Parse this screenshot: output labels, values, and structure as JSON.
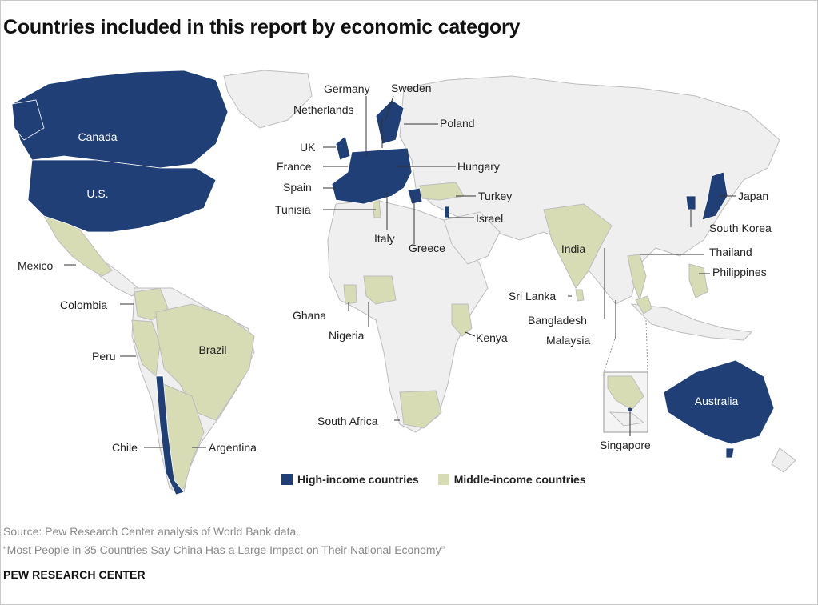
{
  "title": "Countries included in this report by economic category",
  "colors": {
    "high_income": "#1f3f76",
    "middle_income": "#d7dcb5",
    "other_country": "#efefef",
    "border": "#bdbdbd",
    "inset_border": "#999999"
  },
  "legend": {
    "high_label": "High-income countries",
    "middle_label": "Middle-income countries"
  },
  "regions": {
    "inner_labels": [
      "Canada",
      "U.S.",
      "Brazil",
      "India",
      "Australia"
    ],
    "callouts": [
      "Germany",
      "Sweden",
      "Netherlands",
      "Poland",
      "UK",
      "France",
      "Hungary",
      "Spain",
      "Turkey",
      "Tunisia",
      "Israel",
      "Italy",
      "Greece",
      "Japan",
      "South Korea",
      "Thailand",
      "Philippines",
      "Mexico",
      "Colombia",
      "Peru",
      "Chile",
      "Argentina",
      "Ghana",
      "Nigeria",
      "Kenya",
      "Sri Lanka",
      "Bangladesh",
      "Malaysia",
      "South Africa",
      "Singapore"
    ]
  },
  "inset": "Singapore",
  "footer": {
    "source": "Source: Pew Research Center analysis of World Bank data.",
    "report": "“Most People in 35 Countries Say China Has a Large Impact on Their National Economy”",
    "org": "PEW RESEARCH CENTER"
  }
}
